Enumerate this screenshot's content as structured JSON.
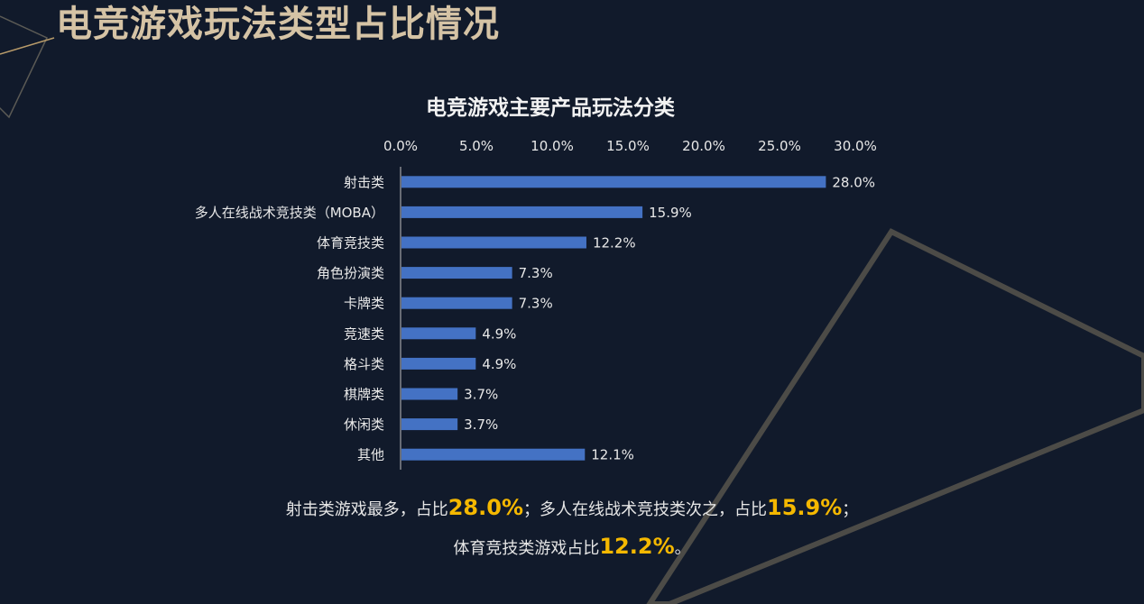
{
  "page_title": "电竞游戏玩法类型占比情况",
  "colors": {
    "background": "#111a2b",
    "title": "#d5c3a5",
    "bar": "#4472c4",
    "highlight": "#f5b800",
    "text": "#e6e6e6"
  },
  "chart_data": {
    "type": "bar",
    "orientation": "horizontal",
    "title": "电竞游戏主要产品玩法分类",
    "categories": [
      "射击类",
      "多人在线战术竞技类（MOBA）",
      "体育竞技类",
      "角色扮演类",
      "卡牌类",
      "竞速类",
      "格斗类",
      "棋牌类",
      "休闲类",
      "其他"
    ],
    "values": [
      28.0,
      15.9,
      12.2,
      7.3,
      7.3,
      4.9,
      4.9,
      3.7,
      3.7,
      12.1
    ],
    "value_labels": [
      "28.0%",
      "15.9%",
      "12.2%",
      "7.3%",
      "7.3%",
      "4.9%",
      "4.9%",
      "3.7%",
      "3.7%",
      "12.1%"
    ],
    "xlim": [
      0,
      30
    ],
    "xticks": [
      0,
      5,
      10,
      15,
      20,
      25,
      30
    ],
    "xtick_labels": [
      "0.0%",
      "5.0%",
      "10.0%",
      "15.0%",
      "20.0%",
      "25.0%",
      "30.0%"
    ],
    "x_axis_position": "top",
    "grid": false,
    "legend": "none"
  },
  "summary": {
    "line1_a": "射击类游戏最多，占比",
    "line1_v1": "28.0%",
    "line1_b": "；多人在线战术竞技类次之，占比",
    "line1_v2": "15.9%",
    "line1_c": "；",
    "line2_a": "体育竞技类游戏占比",
    "line2_v": "12.2%",
    "line2_b": "。"
  }
}
